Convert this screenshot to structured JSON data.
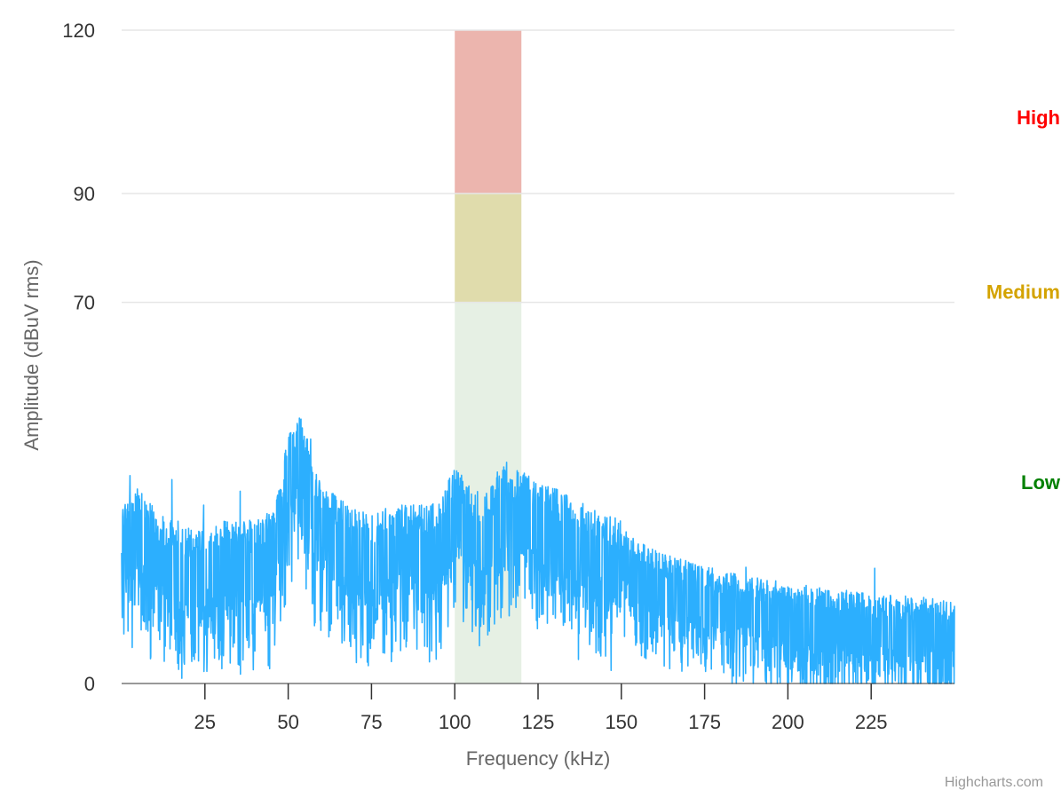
{
  "chart_data": {
    "type": "line",
    "title": "",
    "xlabel": "Frequency (kHz)",
    "ylabel": "Amplitude (dBuV rms)",
    "xlim": [
      0,
      250
    ],
    "ylim": [
      0,
      120
    ],
    "x_ticks": [
      25,
      50,
      75,
      100,
      125,
      150,
      175,
      200,
      225
    ],
    "y_ticks": [
      0,
      70,
      90,
      120
    ],
    "grid": true,
    "legend": "none",
    "series_color": "#2caffe",
    "plot_band": {
      "from": 100,
      "to": 120,
      "zones": [
        {
          "from": 0,
          "to": 70,
          "color": "#e6f0e4"
        },
        {
          "from": 70,
          "to": 90,
          "color": "#e0dcac"
        },
        {
          "from": 90,
          "to": 120,
          "color": "#ecb5ae"
        }
      ]
    },
    "band_labels": [
      {
        "label": "High",
        "color": "#ff0000"
      },
      {
        "label": "Medium",
        "color": "#d4a300"
      },
      {
        "label": "Low",
        "color": "#008000"
      }
    ],
    "spectrum_profile": [
      {
        "x": 0,
        "y": 27
      },
      {
        "x": 5,
        "y": 30
      },
      {
        "x": 10,
        "y": 26
      },
      {
        "x": 20,
        "y": 23
      },
      {
        "x": 30,
        "y": 24
      },
      {
        "x": 40,
        "y": 24
      },
      {
        "x": 46,
        "y": 26
      },
      {
        "x": 50,
        "y": 40
      },
      {
        "x": 54,
        "y": 44
      },
      {
        "x": 58,
        "y": 33
      },
      {
        "x": 65,
        "y": 28
      },
      {
        "x": 75,
        "y": 25
      },
      {
        "x": 85,
        "y": 27
      },
      {
        "x": 95,
        "y": 27
      },
      {
        "x": 100,
        "y": 34
      },
      {
        "x": 105,
        "y": 30
      },
      {
        "x": 110,
        "y": 29
      },
      {
        "x": 115,
        "y": 35
      },
      {
        "x": 120,
        "y": 33
      },
      {
        "x": 130,
        "y": 30
      },
      {
        "x": 140,
        "y": 27
      },
      {
        "x": 150,
        "y": 24
      },
      {
        "x": 160,
        "y": 20
      },
      {
        "x": 175,
        "y": 17
      },
      {
        "x": 200,
        "y": 14
      },
      {
        "x": 225,
        "y": 12
      },
      {
        "x": 250,
        "y": 11
      }
    ]
  },
  "credits": "Highcharts.com"
}
